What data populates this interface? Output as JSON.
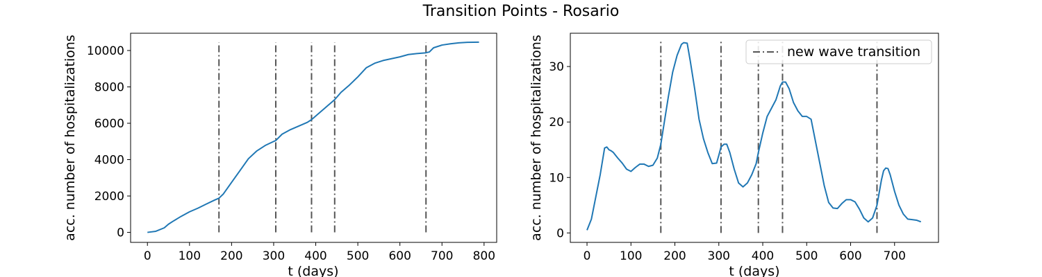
{
  "figure": {
    "title": "Transition Points - Rosario"
  },
  "colors": {
    "series": "#1f77b4",
    "transition": "#555555",
    "axis": "#000000"
  },
  "chart_data": [
    {
      "type": "line",
      "title": "",
      "xlabel": "t (days)",
      "ylabel": "acc. number of hospitalizations",
      "xlim": [
        -40,
        830
      ],
      "ylim": [
        -550,
        10950
      ],
      "xticks": [
        0,
        100,
        200,
        300,
        400,
        500,
        600,
        700,
        800
      ],
      "yticks": [
        0,
        2000,
        4000,
        6000,
        8000,
        10000
      ],
      "transitions": [
        170,
        305,
        390,
        445,
        662
      ],
      "transition_range": [
        0,
        10450
      ],
      "legend": null,
      "series": [
        {
          "x": [
            0,
            20,
            40,
            50,
            60,
            80,
            100,
            120,
            140,
            160,
            170,
            180,
            200,
            220,
            240,
            260,
            280,
            300,
            305,
            320,
            340,
            360,
            380,
            390,
            400,
            420,
            445,
            460,
            480,
            500,
            520,
            540,
            560,
            580,
            600,
            620,
            640,
            660,
            670,
            680,
            700,
            720,
            740,
            760,
            788
          ],
          "values": [
            0,
            60,
            250,
            450,
            600,
            880,
            1130,
            1330,
            1560,
            1780,
            1880,
            2100,
            2750,
            3400,
            4050,
            4480,
            4780,
            5000,
            5050,
            5400,
            5650,
            5850,
            6050,
            6200,
            6400,
            6800,
            7300,
            7700,
            8100,
            8550,
            9050,
            9300,
            9450,
            9550,
            9650,
            9780,
            9830,
            9870,
            9920,
            10150,
            10300,
            10370,
            10420,
            10450,
            10460
          ]
        }
      ]
    },
    {
      "type": "line",
      "title": "",
      "xlabel": "t (days)",
      "ylabel": "acc. number of hospitalizations",
      "xlim": [
        -38,
        800
      ],
      "ylim": [
        -1.7,
        36
      ],
      "xticks": [
        0,
        100,
        200,
        300,
        400,
        500,
        600,
        700
      ],
      "yticks": [
        0,
        10,
        20,
        30
      ],
      "transitions": [
        168,
        305,
        390,
        445,
        660
      ],
      "transition_range": [
        0,
        34.5
      ],
      "legend": {
        "label": "new wave transition",
        "position": "top-right"
      },
      "series": [
        {
          "x": [
            0,
            10,
            20,
            30,
            40,
            45,
            50,
            55,
            60,
            70,
            80,
            90,
            100,
            110,
            120,
            130,
            140,
            150,
            160,
            168,
            175,
            185,
            195,
            205,
            215,
            220,
            228,
            235,
            245,
            255,
            265,
            275,
            285,
            295,
            300,
            305,
            312,
            318,
            325,
            335,
            345,
            355,
            365,
            375,
            385,
            390,
            400,
            410,
            420,
            430,
            440,
            445,
            452,
            460,
            470,
            480,
            490,
            500,
            510,
            520,
            530,
            540,
            550,
            560,
            570,
            580,
            590,
            600,
            610,
            620,
            630,
            640,
            650,
            660,
            670,
            675,
            680,
            685,
            690,
            700,
            710,
            720,
            730,
            740,
            750,
            760
          ],
          "values": [
            0.5,
            2.5,
            6.5,
            10.5,
            15.3,
            15.5,
            15.0,
            14.8,
            14.5,
            13.5,
            12.6,
            11.5,
            11.1,
            11.8,
            12.4,
            12.4,
            12.0,
            12.2,
            13.5,
            16.0,
            19.5,
            24.5,
            29.0,
            32.0,
            34.0,
            34.3,
            34.2,
            31.0,
            26.0,
            20.5,
            17.0,
            14.5,
            12.5,
            12.6,
            14.0,
            15.5,
            16.0,
            16.0,
            14.5,
            11.5,
            9.0,
            8.3,
            9.0,
            10.5,
            12.5,
            14.5,
            18.0,
            21.0,
            22.5,
            24.0,
            26.5,
            27.2,
            27.2,
            26.0,
            23.5,
            22.0,
            21.0,
            21.0,
            20.5,
            16.5,
            12.5,
            8.5,
            5.5,
            4.5,
            4.4,
            5.3,
            6.0,
            6.0,
            5.6,
            4.3,
            2.7,
            2.0,
            2.7,
            5.0,
            9.5,
            11.2,
            11.7,
            11.6,
            10.5,
            7.5,
            5.0,
            3.4,
            2.5,
            2.4,
            2.3,
            2.0
          ]
        }
      ]
    }
  ]
}
